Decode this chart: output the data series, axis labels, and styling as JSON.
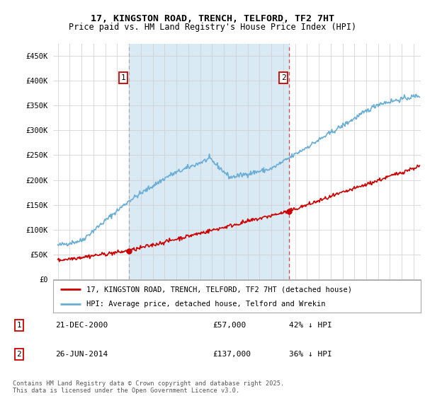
{
  "title": "17, KINGSTON ROAD, TRENCH, TELFORD, TF2 7HT",
  "subtitle": "Price paid vs. HM Land Registry's House Price Index (HPI)",
  "ylim": [
    0,
    475000
  ],
  "xlim_start": 1994.6,
  "xlim_end": 2025.6,
  "yticks": [
    0,
    50000,
    100000,
    150000,
    200000,
    250000,
    300000,
    350000,
    400000,
    450000
  ],
  "ytick_labels": [
    "£0",
    "£50K",
    "£100K",
    "£150K",
    "£200K",
    "£250K",
    "£300K",
    "£350K",
    "£400K",
    "£450K"
  ],
  "sale1_date": 2000.97,
  "sale1_price": 57000,
  "sale1_label": "1",
  "sale2_date": 2014.48,
  "sale2_price": 137000,
  "sale2_label": "2",
  "hpi_color": "#6aaed6",
  "hpi_fill_color": "#daeaf5",
  "sale_color": "#cc0000",
  "vline1_color": "#aaaaaa",
  "vline2_color": "#dd4444",
  "legend_label_sale": "17, KINGSTON ROAD, TRENCH, TELFORD, TF2 7HT (detached house)",
  "legend_label_hpi": "HPI: Average price, detached house, Telford and Wrekin",
  "table_rows": [
    {
      "num": "1",
      "date": "21-DEC-2000",
      "price": "£57,000",
      "pct": "42% ↓ HPI"
    },
    {
      "num": "2",
      "date": "26-JUN-2014",
      "price": "£137,000",
      "pct": "36% ↓ HPI"
    }
  ],
  "footer": "Contains HM Land Registry data © Crown copyright and database right 2025.\nThis data is licensed under the Open Government Licence v3.0.",
  "background_color": "#ffffff",
  "grid_color": "#cccccc"
}
